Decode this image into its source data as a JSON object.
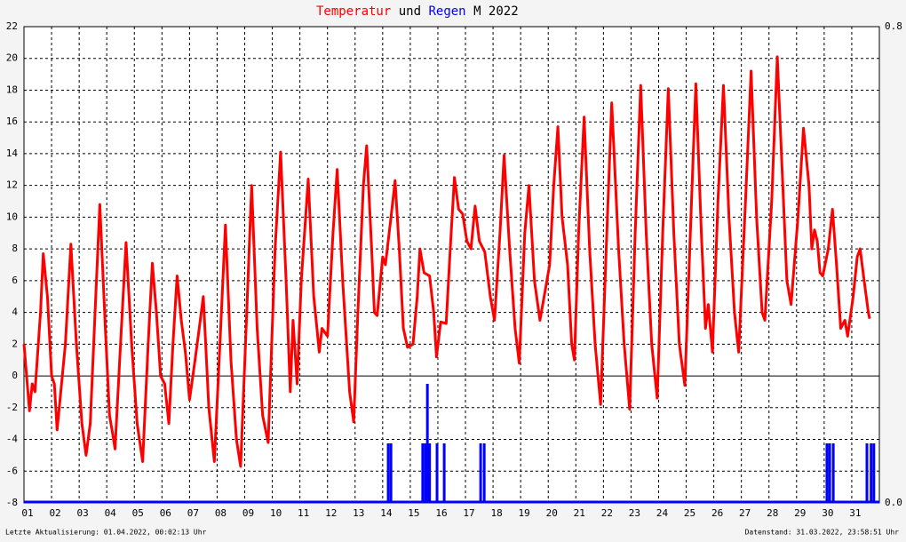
{
  "chart_data": {
    "type": "line-bar",
    "title_join": "und",
    "title_suffix": "M 2022",
    "footer_left": "Letzte Aktualisierung: 01.04.2022, 00:02:13 Uhr",
    "footer_right": "Datenstand: 31.03.2022, 23:58:51 Uhr",
    "xlim": [
      1,
      32
    ],
    "xticks": [
      {
        "value": 1,
        "label": "01"
      },
      {
        "value": 2,
        "label": "02"
      },
      {
        "value": 3,
        "label": "03"
      },
      {
        "value": 4,
        "label": "04"
      },
      {
        "value": 5,
        "label": "05"
      },
      {
        "value": 6,
        "label": "06"
      },
      {
        "value": 7,
        "label": "07"
      },
      {
        "value": 8,
        "label": "08"
      },
      {
        "value": 9,
        "label": "09"
      },
      {
        "value": 10,
        "label": "10"
      },
      {
        "value": 11,
        "label": "11"
      },
      {
        "value": 12,
        "label": "12"
      },
      {
        "value": 13,
        "label": "13"
      },
      {
        "value": 14,
        "label": "14"
      },
      {
        "value": 15,
        "label": "15"
      },
      {
        "value": 16,
        "label": "16"
      },
      {
        "value": 17,
        "label": "17"
      },
      {
        "value": 18,
        "label": "18"
      },
      {
        "value": 19,
        "label": "19"
      },
      {
        "value": 20,
        "label": "20"
      },
      {
        "value": 21,
        "label": "21"
      },
      {
        "value": 22,
        "label": "22"
      },
      {
        "value": 23,
        "label": "23"
      },
      {
        "value": 24,
        "label": "24"
      },
      {
        "value": 25,
        "label": "25"
      },
      {
        "value": 26,
        "label": "26"
      },
      {
        "value": 27,
        "label": "27"
      },
      {
        "value": 28,
        "label": "28"
      },
      {
        "value": 29,
        "label": "29"
      },
      {
        "value": 30,
        "label": "30"
      },
      {
        "value": 31,
        "label": "31"
      }
    ],
    "ylim": [
      -8,
      22
    ],
    "yticks": [
      -8,
      -6,
      -4,
      -2,
      0,
      2,
      4,
      6,
      8,
      10,
      12,
      14,
      16,
      18,
      20,
      22
    ],
    "y2lim": [
      0,
      0.8
    ],
    "y2ticks": [
      {
        "value": 0,
        "label": "0.0"
      },
      {
        "value": 0.8,
        "label": "0.8"
      }
    ],
    "grid": true,
    "series": [
      {
        "name": "Temperatur",
        "color": "#ff0000",
        "kind": "line",
        "x": [
          1.0,
          1.2,
          1.3,
          1.4,
          1.6,
          1.7,
          1.85,
          2.0,
          2.1,
          2.2,
          2.5,
          2.7,
          2.9,
          3.1,
          3.25,
          3.4,
          3.6,
          3.75,
          3.95,
          4.1,
          4.2,
          4.3,
          4.5,
          4.7,
          4.9,
          5.1,
          5.3,
          5.5,
          5.65,
          5.8,
          5.95,
          6.1,
          6.25,
          6.4,
          6.55,
          6.7,
          6.85,
          7.0,
          7.2,
          7.35,
          7.5,
          7.7,
          7.9,
          8.1,
          8.3,
          8.5,
          8.7,
          8.85,
          9.05,
          9.25,
          9.45,
          9.65,
          9.85,
          10.1,
          10.3,
          10.5,
          10.65,
          10.75,
          10.9,
          11.05,
          11.3,
          11.5,
          11.6,
          11.7,
          11.8,
          12.0,
          12.2,
          12.35,
          12.55,
          12.8,
          12.95,
          13.1,
          13.3,
          13.42,
          13.6,
          13.7,
          13.8,
          14.0,
          14.1,
          14.3,
          14.45,
          14.6,
          14.75,
          14.9,
          15.1,
          15.25,
          15.35,
          15.5,
          15.7,
          15.85,
          15.95,
          16.1,
          16.3,
          16.45,
          16.6,
          16.75,
          16.9,
          17.05,
          17.2,
          17.35,
          17.5,
          17.7,
          17.9,
          18.05,
          18.25,
          18.4,
          18.6,
          18.8,
          18.95,
          19.15,
          19.3,
          19.5,
          19.7,
          19.85,
          20.05,
          20.2,
          20.35,
          20.5,
          20.7,
          20.85,
          20.95,
          21.1,
          21.3,
          21.5,
          21.7,
          21.9,
          22.1,
          22.3,
          22.55,
          22.75,
          22.95,
          23.15,
          23.35,
          23.55,
          23.75,
          23.95,
          24.15,
          24.35,
          24.55,
          24.75,
          24.95,
          25.15,
          25.35,
          25.55,
          25.7,
          25.8,
          25.95,
          26.15,
          26.35,
          26.55,
          26.75,
          26.9,
          27.15,
          27.35,
          27.55,
          27.75,
          27.85,
          28.1,
          28.3,
          28.5,
          28.65,
          28.8,
          29.05,
          29.25,
          29.45,
          29.55,
          29.65,
          29.75,
          29.85,
          29.95,
          30.15,
          30.3,
          30.45,
          30.6,
          30.75,
          30.85,
          31.05,
          31.2,
          31.3,
          31.45,
          31.6,
          31.65
        ],
        "values": [
          2,
          -2.2,
          -0.5,
          -1,
          4,
          7.7,
          5,
          0,
          -0.5,
          -3.4,
          2,
          8.3,
          2,
          -3,
          -5,
          -3,
          5,
          10.8,
          3,
          -2.5,
          -3.5,
          -4.6,
          2,
          8.4,
          2,
          -3,
          -5.4,
          2,
          7.1,
          4,
          0,
          -0.5,
          -3,
          2,
          6.3,
          3.5,
          1.5,
          -1.5,
          1,
          3,
          5,
          -2,
          -5.4,
          2,
          9.5,
          1,
          -4,
          -5.7,
          3,
          12,
          3,
          -2.5,
          -4.2,
          8,
          14.1,
          6,
          -1,
          3.5,
          -0.5,
          6,
          12.4,
          5,
          3.3,
          1.5,
          3,
          2.5,
          9,
          13,
          6,
          -1,
          -2.9,
          4,
          12,
          14.5,
          8,
          4,
          3.8,
          7.5,
          7,
          10,
          12.3,
          8,
          3,
          1.8,
          2,
          5,
          8,
          6.5,
          6.3,
          4,
          1.2,
          3.4,
          3.3,
          8,
          12.5,
          10.5,
          10.2,
          8.5,
          8,
          10.7,
          8.5,
          7.8,
          5,
          3.5,
          9,
          13.9,
          8,
          3,
          0.8,
          9,
          12,
          6,
          3.5,
          5,
          7,
          12,
          15.7,
          10,
          7,
          2,
          1,
          9,
          16.3,
          8,
          2,
          -1.8,
          8,
          17.2,
          8,
          2,
          -2.1,
          9,
          18.3,
          9,
          2,
          -1.4,
          9,
          18.1,
          9,
          2,
          -0.6,
          9,
          18.4,
          9,
          3,
          4.5,
          1.5,
          11,
          18.3,
          10,
          4,
          1.5,
          11,
          19.2,
          10,
          4,
          3.5,
          11,
          20.1,
          12,
          6,
          4.5,
          10,
          15.6,
          12,
          8,
          9.2,
          8.5,
          6.5,
          6.3,
          8,
          10.5,
          7,
          3,
          3.5,
          2.5,
          5,
          7.5,
          8,
          6,
          4,
          3.6
        ]
      },
      {
        "name": "Regen",
        "color": "#0000ff",
        "kind": "bar",
        "axis": "y2",
        "x": [
          14.2,
          14.3,
          15.45,
          15.55,
          15.62,
          15.7,
          15.97,
          16.23,
          17.55,
          17.68,
          30.1,
          30.2,
          30.33,
          31.55,
          31.7,
          31.8
        ],
        "values": [
          0.1,
          0.1,
          0.1,
          0.1,
          0.2,
          0.1,
          0.1,
          0.1,
          0.1,
          0.1,
          0.1,
          0.1,
          0.1,
          0.1,
          0.1,
          0.1
        ]
      }
    ]
  }
}
